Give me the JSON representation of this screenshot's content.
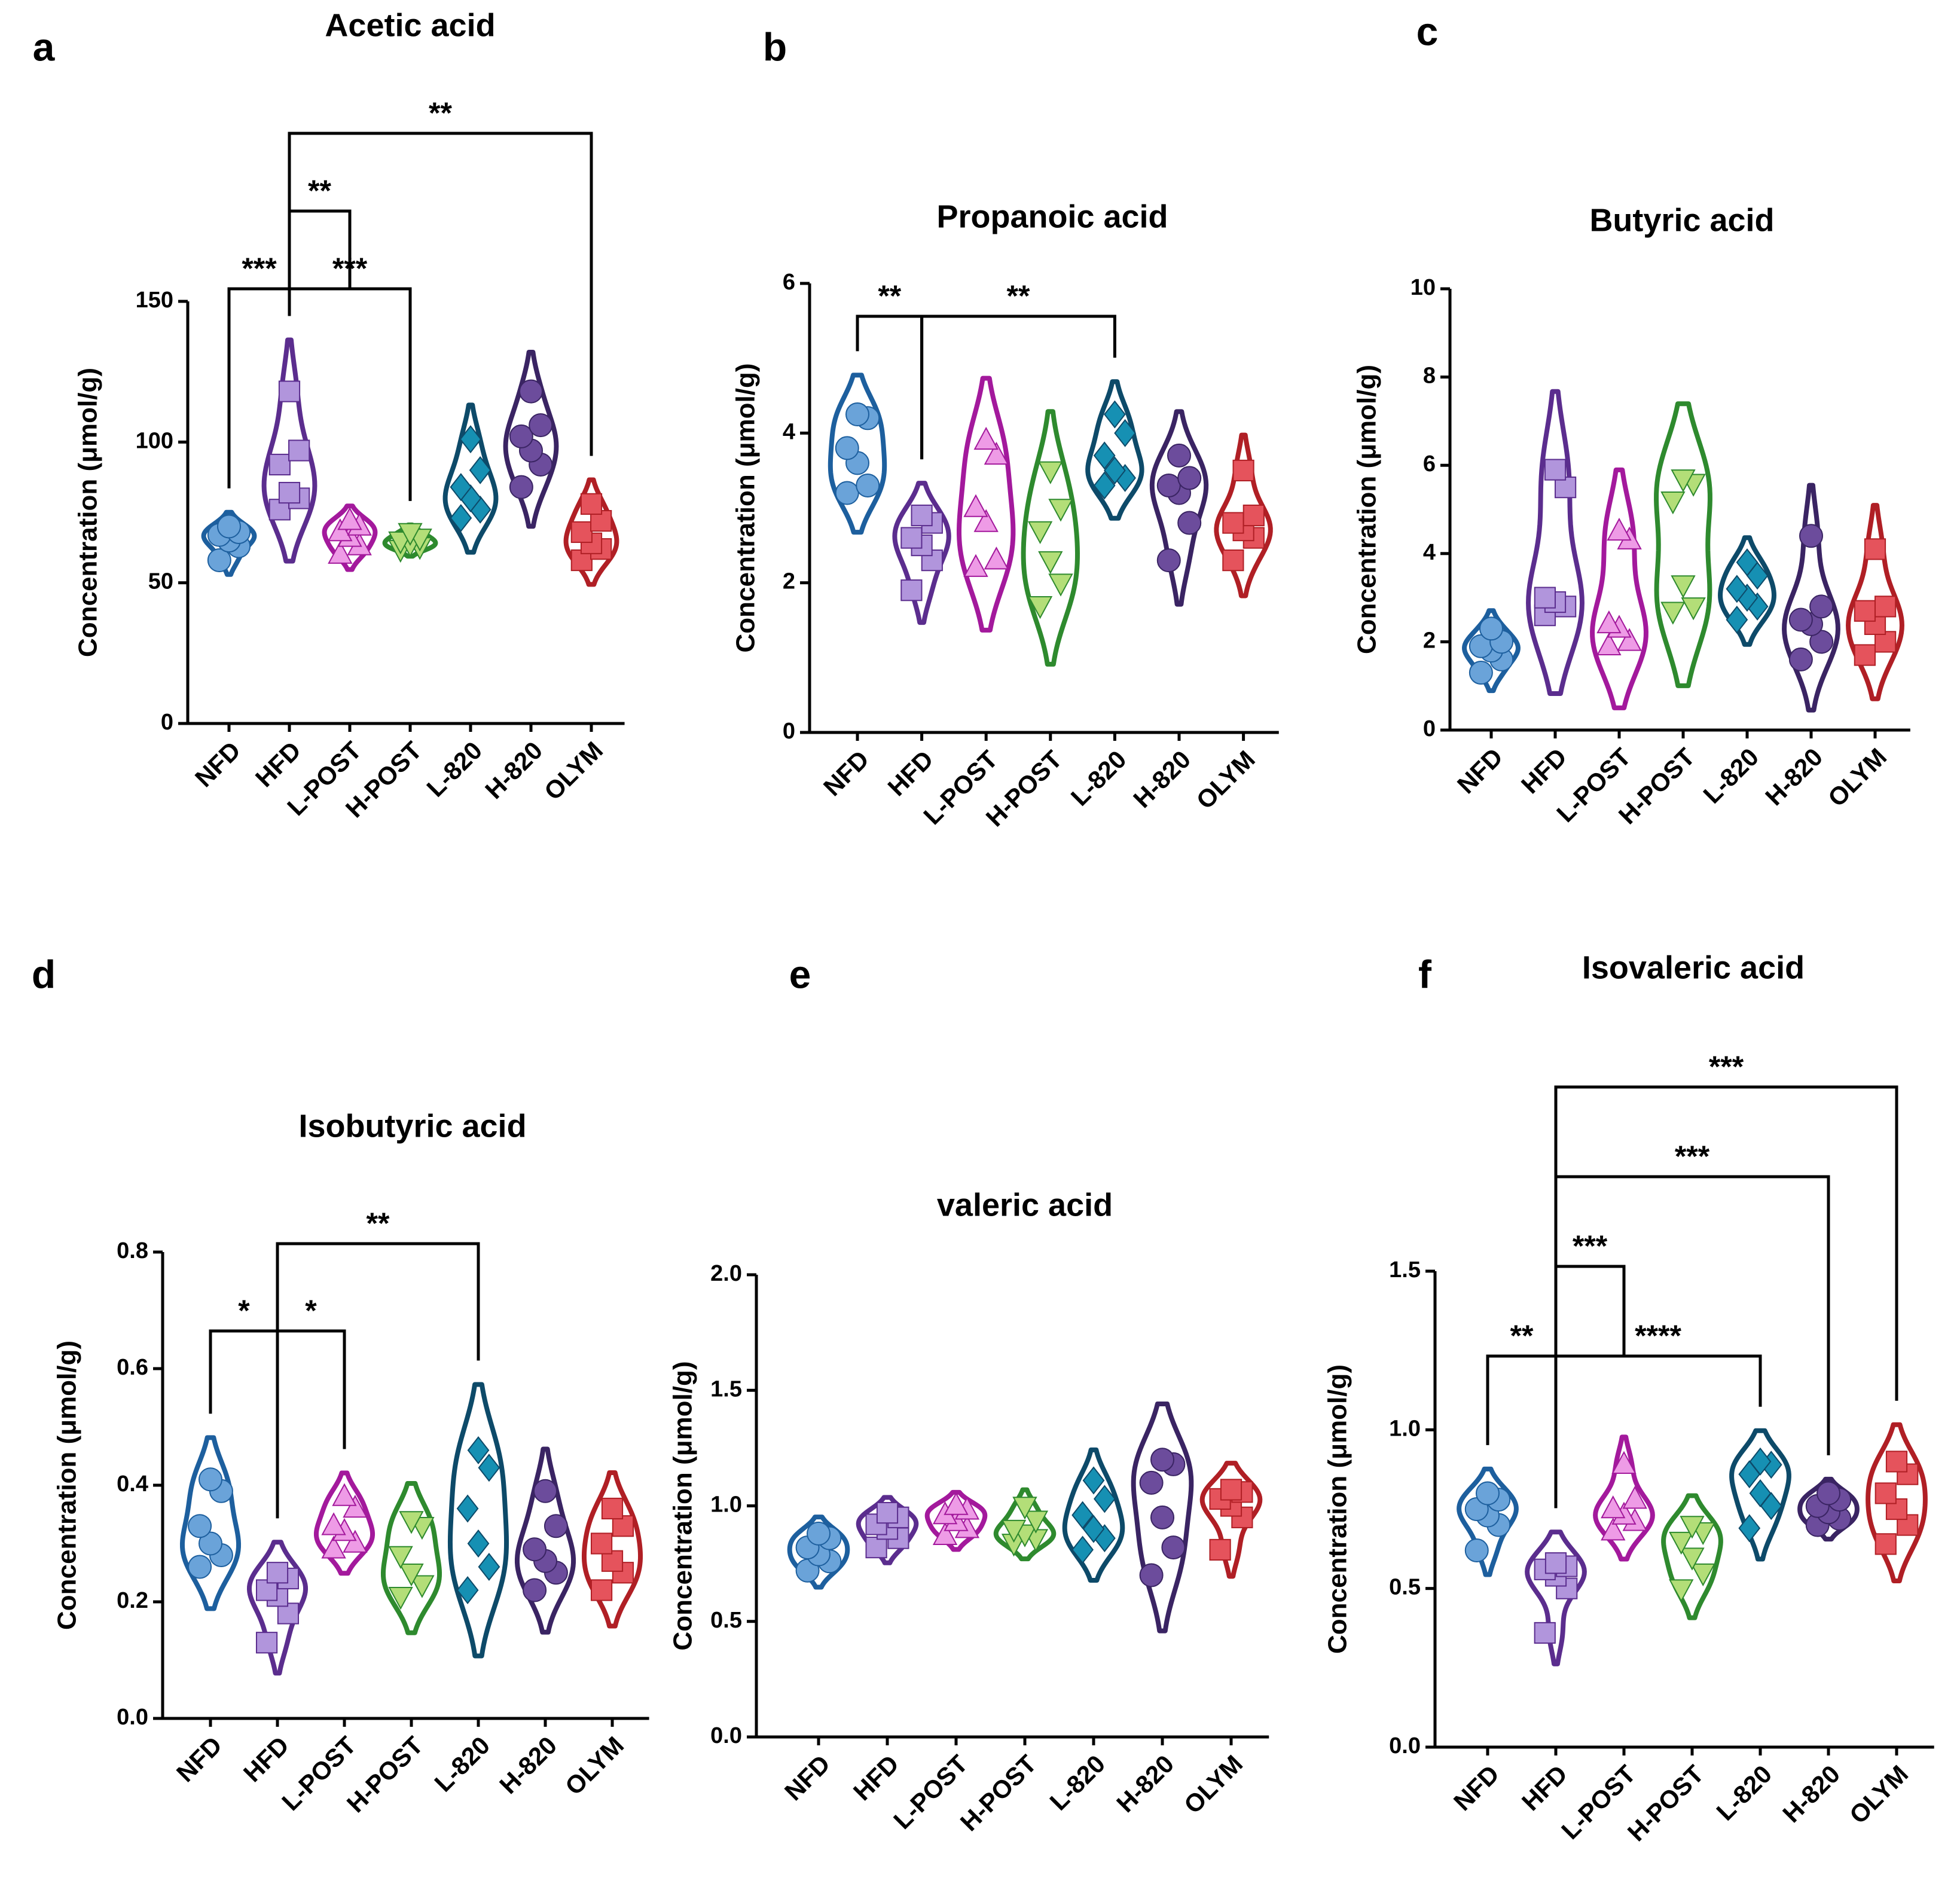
{
  "chart_data": [
    {
      "type": "violin",
      "label": "a",
      "title": "Acetic acid",
      "ylabel": "Concentration (μmol/g)",
      "categories": [
        "NFD",
        "HFD",
        "L-POST",
        "H-POST",
        "L-820",
        "H-820",
        "OLYM"
      ],
      "series": [
        {
          "color": "#6aa3d9",
          "edgecolor": "#1d5f9e",
          "marker": "circle",
          "values": [
            58,
            63,
            65,
            67,
            68,
            70
          ]
        },
        {
          "color": "#b195dc",
          "edgecolor": "#5b2d8e",
          "marker": "square",
          "values": [
            76,
            80,
            82,
            92,
            97,
            118
          ]
        },
        {
          "color": "#ee9be6",
          "edgecolor": "#a3199c",
          "marker": "triangle",
          "values": [
            60,
            63,
            66,
            68,
            70,
            72
          ]
        },
        {
          "color": "#b3de78",
          "edgecolor": "#2e8a2e",
          "marker": "triangle-down",
          "values": [
            62,
            63,
            64,
            65,
            66,
            68
          ]
        },
        {
          "color": "#1690b3",
          "edgecolor": "#0d4a69",
          "marker": "diamond",
          "values": [
            73,
            76,
            80,
            84,
            90,
            101
          ]
        },
        {
          "color": "#6c4c9c",
          "edgecolor": "#3a2463",
          "marker": "circle",
          "values": [
            84,
            92,
            97,
            102,
            106,
            118
          ]
        },
        {
          "color": "#e5535c",
          "edgecolor": "#b01f25",
          "marker": "square",
          "values": [
            58,
            62,
            64,
            68,
            72,
            78
          ]
        }
      ],
      "ylim": [
        0,
        150
      ],
      "yticks": [
        0,
        50,
        100,
        150
      ],
      "brackets": [
        {
          "from": 0,
          "to": 1,
          "label": "***"
        },
        {
          "from": 1,
          "to": 3,
          "label": "***"
        },
        {
          "from": 1,
          "to": 2,
          "label": "**"
        },
        {
          "from": 1,
          "to": 6,
          "label": "**"
        }
      ]
    },
    {
      "type": "violin",
      "label": "b",
      "title": "Propanoic acid",
      "ylabel": "Concentration (μmol/g)",
      "categories": [
        "NFD",
        "HFD",
        "L-POST",
        "H-POST",
        "L-820",
        "H-820",
        "OLYM"
      ],
      "series": [
        {
          "color": "#6aa3d9",
          "edgecolor": "#1d5f9e",
          "marker": "circle",
          "values": [
            3.2,
            3.3,
            3.6,
            3.8,
            4.2,
            4.25
          ]
        },
        {
          "color": "#b195dc",
          "edgecolor": "#5b2d8e",
          "marker": "square",
          "values": [
            1.9,
            2.3,
            2.5,
            2.6,
            2.8,
            2.9
          ]
        },
        {
          "color": "#ee9be6",
          "edgecolor": "#a3199c",
          "marker": "triangle",
          "values": [
            2.2,
            2.3,
            2.8,
            3.0,
            3.7,
            3.9
          ]
        },
        {
          "color": "#b3de78",
          "edgecolor": "#2e8a2e",
          "marker": "triangle-down",
          "values": [
            1.7,
            2.0,
            2.3,
            2.7,
            3.0,
            3.5
          ]
        },
        {
          "color": "#1690b3",
          "edgecolor": "#0d4a69",
          "marker": "diamond",
          "values": [
            3.3,
            3.4,
            3.5,
            3.7,
            4.0,
            4.25
          ]
        },
        {
          "color": "#6c4c9c",
          "edgecolor": "#3a2463",
          "marker": "circle",
          "values": [
            2.3,
            2.8,
            3.2,
            3.3,
            3.4,
            3.7
          ]
        },
        {
          "color": "#e5535c",
          "edgecolor": "#b01f25",
          "marker": "square",
          "values": [
            2.3,
            2.6,
            2.7,
            2.8,
            2.9,
            3.5
          ]
        }
      ],
      "ylim": [
        0,
        6
      ],
      "yticks": [
        0,
        2,
        4,
        6
      ],
      "brackets": [
        {
          "from": 0,
          "to": 1,
          "label": "**"
        },
        {
          "from": 1,
          "to": 4,
          "label": "**"
        }
      ]
    },
    {
      "type": "violin",
      "label": "c",
      "title": "Butyric acid",
      "ylabel": "Concentration (μmol/g)",
      "categories": [
        "NFD",
        "HFD",
        "L-POST",
        "H-POST",
        "L-820",
        "H-820",
        "OLYM"
      ],
      "series": [
        {
          "color": "#6aa3d9",
          "edgecolor": "#1d5f9e",
          "marker": "circle",
          "values": [
            1.3,
            1.6,
            1.8,
            1.9,
            2.0,
            2.3
          ]
        },
        {
          "color": "#b195dc",
          "edgecolor": "#5b2d8e",
          "marker": "square",
          "values": [
            2.6,
            2.8,
            2.9,
            3.0,
            5.5,
            5.9
          ]
        },
        {
          "color": "#ee9be6",
          "edgecolor": "#a3199c",
          "marker": "triangle",
          "values": [
            1.9,
            2.0,
            2.3,
            2.4,
            4.3,
            4.5
          ]
        },
        {
          "color": "#b3de78",
          "edgecolor": "#2e8a2e",
          "marker": "triangle-down",
          "values": [
            2.7,
            2.8,
            3.3,
            5.2,
            5.6,
            5.7
          ]
        },
        {
          "color": "#1690b3",
          "edgecolor": "#0d4a69",
          "marker": "diamond",
          "values": [
            2.5,
            2.8,
            3.0,
            3.2,
            3.5,
            3.8
          ]
        },
        {
          "color": "#6c4c9c",
          "edgecolor": "#3a2463",
          "marker": "circle",
          "values": [
            1.6,
            2.0,
            2.4,
            2.5,
            2.8,
            4.4
          ]
        },
        {
          "color": "#e5535c",
          "edgecolor": "#b01f25",
          "marker": "square",
          "values": [
            1.7,
            2.0,
            2.4,
            2.7,
            2.8,
            4.1
          ]
        }
      ],
      "ylim": [
        0,
        10
      ],
      "yticks": [
        0,
        2,
        4,
        6,
        8,
        10
      ],
      "brackets": []
    },
    {
      "type": "violin",
      "label": "d",
      "title": "Isobutyric acid",
      "ylabel": "Concentration (μmol/g)",
      "categories": [
        "NFD",
        "HFD",
        "L-POST",
        "H-POST",
        "L-820",
        "H-820",
        "OLYM"
      ],
      "series": [
        {
          "color": "#6aa3d9",
          "edgecolor": "#1d5f9e",
          "marker": "circle",
          "values": [
            0.26,
            0.28,
            0.3,
            0.33,
            0.39,
            0.41
          ]
        },
        {
          "color": "#b195dc",
          "edgecolor": "#5b2d8e",
          "marker": "square",
          "values": [
            0.13,
            0.18,
            0.21,
            0.22,
            0.24,
            0.25
          ]
        },
        {
          "color": "#ee9be6",
          "edgecolor": "#a3199c",
          "marker": "triangle",
          "values": [
            0.29,
            0.3,
            0.32,
            0.33,
            0.36,
            0.38
          ]
        },
        {
          "color": "#b3de78",
          "edgecolor": "#2e8a2e",
          "marker": "triangle-down",
          "values": [
            0.21,
            0.23,
            0.25,
            0.28,
            0.33,
            0.34
          ]
        },
        {
          "color": "#1690b3",
          "edgecolor": "#0d4a69",
          "marker": "diamond",
          "values": [
            0.22,
            0.26,
            0.3,
            0.36,
            0.43,
            0.46
          ]
        },
        {
          "color": "#6c4c9c",
          "edgecolor": "#3a2463",
          "marker": "circle",
          "values": [
            0.22,
            0.25,
            0.27,
            0.29,
            0.33,
            0.39
          ]
        },
        {
          "color": "#e5535c",
          "edgecolor": "#b01f25",
          "marker": "square",
          "values": [
            0.22,
            0.25,
            0.27,
            0.3,
            0.33,
            0.36
          ]
        }
      ],
      "ylim": [
        0,
        0.8
      ],
      "yticks": [
        {
          "value": 0,
          "label": "0.0"
        },
        0.2,
        0.4,
        0.6,
        0.8
      ],
      "brackets": [
        {
          "from": 0,
          "to": 1,
          "label": "*"
        },
        {
          "from": 1,
          "to": 2,
          "label": "*"
        },
        {
          "from": 1,
          "to": 4,
          "label": "**"
        }
      ]
    },
    {
      "type": "violin",
      "label": "e",
      "title": "valeric acid",
      "ylabel": "Concentration (μmol/g)",
      "categories": [
        "NFD",
        "HFD",
        "L-POST",
        "H-POST",
        "L-820",
        "H-820",
        "OLYM"
      ],
      "series": [
        {
          "color": "#6aa3d9",
          "edgecolor": "#1d5f9e",
          "marker": "circle",
          "values": [
            0.72,
            0.76,
            0.79,
            0.82,
            0.86,
            0.88
          ]
        },
        {
          "color": "#b195dc",
          "edgecolor": "#5b2d8e",
          "marker": "square",
          "values": [
            0.82,
            0.86,
            0.9,
            0.92,
            0.95,
            0.97
          ]
        },
        {
          "color": "#ee9be6",
          "edgecolor": "#a3199c",
          "marker": "triangle",
          "values": [
            0.87,
            0.9,
            0.93,
            0.96,
            0.98,
            1.0
          ]
        },
        {
          "color": "#b3de78",
          "edgecolor": "#2e8a2e",
          "marker": "triangle-down",
          "values": [
            0.84,
            0.86,
            0.88,
            0.9,
            0.94,
            1.0
          ]
        },
        {
          "color": "#1690b3",
          "edgecolor": "#0d4a69",
          "marker": "diamond",
          "values": [
            0.81,
            0.86,
            0.9,
            0.96,
            1.03,
            1.11
          ]
        },
        {
          "color": "#6c4c9c",
          "edgecolor": "#3a2463",
          "marker": "circle",
          "values": [
            0.7,
            0.82,
            0.95,
            1.1,
            1.18,
            1.2
          ]
        },
        {
          "color": "#e5535c",
          "edgecolor": "#b01f25",
          "marker": "square",
          "values": [
            0.81,
            0.95,
            1.0,
            1.03,
            1.06,
            1.07
          ]
        }
      ],
      "ylim": [
        0,
        2
      ],
      "yticks": [
        {
          "value": 0,
          "label": "0.0"
        },
        0.5,
        {
          "value": 1,
          "label": "1.0"
        },
        1.5,
        {
          "value": 2,
          "label": "2.0"
        }
      ],
      "brackets": []
    },
    {
      "type": "violin",
      "label": "f",
      "title": "Isovaleric acid",
      "ylabel": "Concentration (μmol/g)",
      "categories": [
        "NFD",
        "HFD",
        "L-POST",
        "H-POST",
        "L-820",
        "H-820",
        "OLYM"
      ],
      "series": [
        {
          "color": "#6aa3d9",
          "edgecolor": "#1d5f9e",
          "marker": "circle",
          "values": [
            0.62,
            0.7,
            0.73,
            0.75,
            0.78,
            0.8
          ]
        },
        {
          "color": "#b195dc",
          "edgecolor": "#5b2d8e",
          "marker": "square",
          "values": [
            0.36,
            0.5,
            0.54,
            0.56,
            0.57,
            0.58
          ]
        },
        {
          "color": "#ee9be6",
          "edgecolor": "#a3199c",
          "marker": "triangle",
          "values": [
            0.68,
            0.71,
            0.73,
            0.75,
            0.78,
            0.89
          ]
        },
        {
          "color": "#b3de78",
          "edgecolor": "#2e8a2e",
          "marker": "triangle-down",
          "values": [
            0.5,
            0.55,
            0.6,
            0.65,
            0.68,
            0.7
          ]
        },
        {
          "color": "#1690b3",
          "edgecolor": "#0d4a69",
          "marker": "diamond",
          "values": [
            0.69,
            0.76,
            0.8,
            0.86,
            0.89,
            0.9
          ]
        },
        {
          "color": "#6c4c9c",
          "edgecolor": "#3a2463",
          "marker": "circle",
          "values": [
            0.7,
            0.72,
            0.74,
            0.76,
            0.78,
            0.8
          ]
        },
        {
          "color": "#e5535c",
          "edgecolor": "#b01f25",
          "marker": "square",
          "values": [
            0.64,
            0.7,
            0.75,
            0.8,
            0.86,
            0.9
          ]
        }
      ],
      "ylim": [
        0,
        1.5
      ],
      "yticks": [
        {
          "value": 0,
          "label": "0.0"
        },
        0.5,
        {
          "value": 1,
          "label": "1.0"
        },
        1.5
      ],
      "brackets": [
        {
          "from": 0,
          "to": 1,
          "label": "**"
        },
        {
          "from": 1,
          "to": 4,
          "label": "****"
        },
        {
          "from": 1,
          "to": 2,
          "label": "***"
        },
        {
          "from": 1,
          "to": 5,
          "label": "***"
        },
        {
          "from": 1,
          "to": 6,
          "label": "***"
        }
      ]
    }
  ]
}
